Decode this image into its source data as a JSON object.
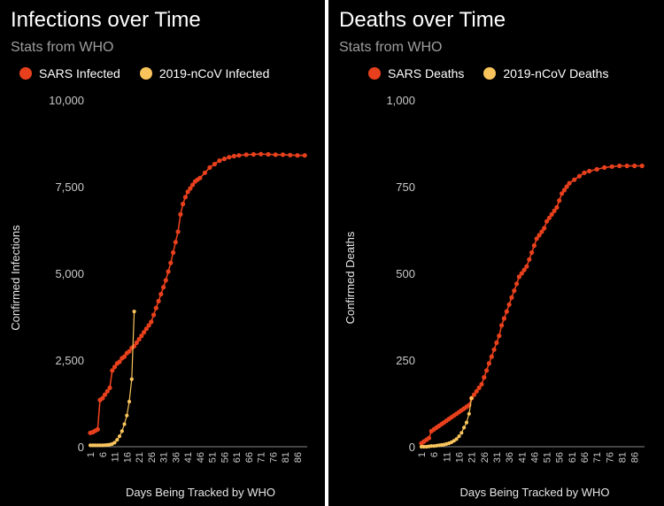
{
  "chart_data": [
    {
      "type": "line",
      "title": "Infections over Time",
      "subtitle": "Stats from WHO",
      "xlabel": "Days Being Tracked by WHO",
      "ylabel": "Confirmed Infections",
      "ylim": [
        0,
        10000
      ],
      "xlim": [
        1,
        90
      ],
      "y_ticks": [
        "0",
        "2,500",
        "5,000",
        "7,500",
        "10,000"
      ],
      "y_tick_values": [
        0,
        2500,
        5000,
        7500,
        10000
      ],
      "x_ticks": [
        "1",
        "6",
        "11",
        "16",
        "21",
        "26",
        "31",
        "36",
        "41",
        "46",
        "51",
        "56",
        "61",
        "66",
        "71",
        "76",
        "81",
        "86"
      ],
      "legend_position": "top-left",
      "grid": false,
      "series": [
        {
          "name": "SARS Infected",
          "color": "#e8401c",
          "x": [
            1,
            2,
            3,
            4,
            5,
            6,
            7,
            8,
            9,
            10,
            11,
            12,
            13,
            14,
            15,
            16,
            17,
            18,
            19,
            20,
            21,
            22,
            23,
            24,
            25,
            26,
            27,
            28,
            29,
            30,
            31,
            32,
            33,
            34,
            35,
            36,
            37,
            38,
            39,
            40,
            41,
            42,
            43,
            44,
            45,
            46,
            48,
            50,
            52,
            54,
            56,
            58,
            60,
            62,
            65,
            68,
            71,
            74,
            77,
            80,
            83,
            86,
            89
          ],
          "y": [
            400,
            420,
            460,
            500,
            1350,
            1400,
            1500,
            1600,
            1700,
            2200,
            2300,
            2400,
            2450,
            2550,
            2600,
            2700,
            2750,
            2850,
            2900,
            3000,
            3100,
            3200,
            3300,
            3400,
            3500,
            3600,
            3800,
            4000,
            4200,
            4400,
            4600,
            4800,
            5050,
            5300,
            5600,
            5900,
            6200,
            6700,
            7000,
            7200,
            7350,
            7450,
            7550,
            7650,
            7700,
            7750,
            7900,
            8050,
            8150,
            8250,
            8300,
            8350,
            8380,
            8400,
            8420,
            8430,
            8440,
            8430,
            8420,
            8420,
            8410,
            8400,
            8400
          ]
        },
        {
          "name": "2019-nCoV Infected",
          "color": "#f9c45c",
          "x": [
            1,
            2,
            3,
            4,
            5,
            6,
            7,
            8,
            9,
            10,
            11,
            12,
            13,
            14,
            15,
            16,
            17,
            18,
            19
          ],
          "y": [
            40,
            40,
            40,
            40,
            40,
            40,
            45,
            50,
            60,
            80,
            120,
            200,
            300,
            450,
            650,
            900,
            1300,
            1950,
            3900
          ]
        }
      ]
    },
    {
      "type": "line",
      "title": "Deaths over Time",
      "subtitle": "Stats from WHO",
      "xlabel": "Days Being Tracked by WHO",
      "ylabel": "Confirmed Deaths",
      "ylim": [
        0,
        1000
      ],
      "xlim": [
        1,
        90
      ],
      "y_ticks": [
        "0",
        "250",
        "500",
        "750",
        "1,000"
      ],
      "y_tick_values": [
        0,
        250,
        500,
        750,
        1000
      ],
      "x_ticks": [
        "1",
        "6",
        "11",
        "16",
        "21",
        "26",
        "31",
        "36",
        "41",
        "46",
        "51",
        "56",
        "61",
        "66",
        "71",
        "76",
        "81",
        "86"
      ],
      "legend_position": "top-left",
      "grid": false,
      "series": [
        {
          "name": "SARS Deaths",
          "color": "#e8401c",
          "x": [
            1,
            2,
            3,
            4,
            5,
            6,
            7,
            8,
            9,
            10,
            11,
            12,
            13,
            14,
            15,
            16,
            17,
            18,
            19,
            20,
            21,
            22,
            23,
            24,
            25,
            26,
            27,
            28,
            29,
            30,
            31,
            32,
            33,
            34,
            35,
            36,
            37,
            38,
            39,
            40,
            41,
            42,
            43,
            44,
            45,
            46,
            47,
            48,
            49,
            50,
            51,
            52,
            53,
            54,
            55,
            56,
            57,
            58,
            59,
            60,
            62,
            64,
            66,
            68,
            71,
            74,
            77,
            80,
            83,
            86,
            89
          ],
          "y": [
            10,
            15,
            20,
            25,
            45,
            50,
            55,
            60,
            65,
            70,
            75,
            80,
            85,
            90,
            95,
            100,
            105,
            110,
            115,
            120,
            140,
            150,
            160,
            170,
            180,
            200,
            220,
            240,
            260,
            280,
            300,
            320,
            350,
            370,
            390,
            410,
            430,
            450,
            470,
            490,
            500,
            510,
            520,
            540,
            560,
            580,
            600,
            610,
            620,
            630,
            650,
            660,
            670,
            680,
            690,
            710,
            730,
            740,
            750,
            760,
            770,
            780,
            790,
            795,
            800,
            805,
            808,
            810,
            810,
            810,
            810
          ]
        },
        {
          "name": "2019-nCoV Deaths",
          "color": "#f9c45c",
          "x": [
            1,
            2,
            3,
            4,
            5,
            6,
            7,
            8,
            9,
            10,
            11,
            12,
            13,
            14,
            15,
            16,
            17,
            18,
            19,
            20,
            21
          ],
          "y": [
            0,
            0,
            0,
            1,
            2,
            2,
            3,
            4,
            5,
            6,
            8,
            10,
            13,
            17,
            22,
            30,
            40,
            55,
            70,
            95,
            140
          ]
        }
      ]
    }
  ]
}
